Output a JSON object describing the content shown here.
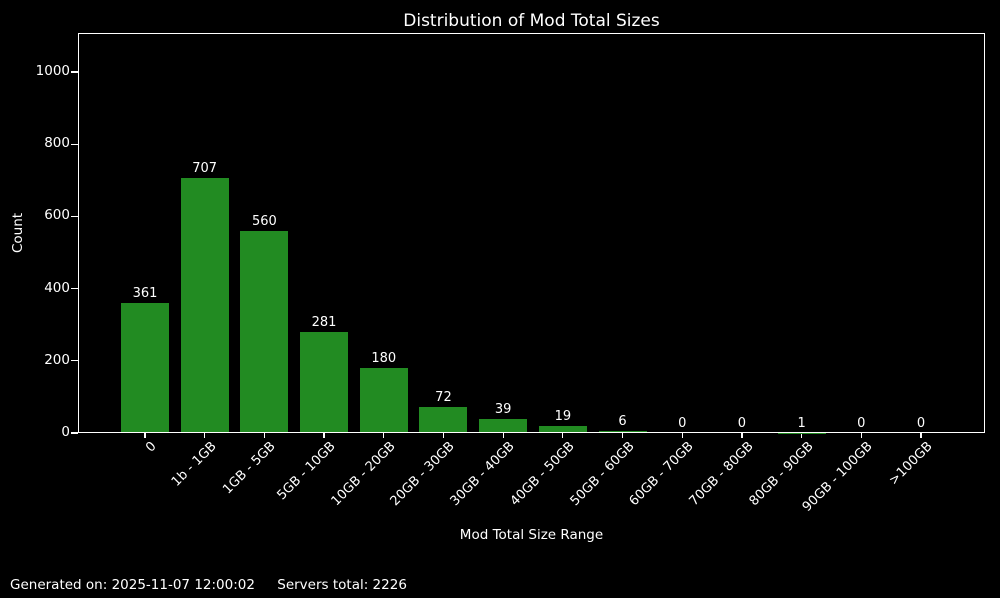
{
  "chart_data": {
    "type": "bar",
    "title": "Distribution of Mod Total Sizes",
    "xlabel": "Mod Total Size Range",
    "ylabel": "Count",
    "categories": [
      "0",
      "1b - 1GB",
      "1GB - 5GB",
      "5GB - 10GB",
      "10GB - 20GB",
      "20GB - 30GB",
      "30GB - 40GB",
      "40GB - 50GB",
      "50GB - 60GB",
      "60GB - 70GB",
      "70GB - 80GB",
      "80GB - 90GB",
      "90GB - 100GB",
      ">100GB"
    ],
    "values": [
      361,
      707,
      560,
      281,
      180,
      72,
      39,
      19,
      6,
      0,
      0,
      1,
      0,
      0
    ],
    "yticks": [
      0,
      200,
      400,
      600,
      800,
      1000
    ],
    "ylim": [
      0,
      1108
    ],
    "x_tick_rotation": 45,
    "grid": false,
    "bar_labels": true,
    "legend": "none",
    "bar_color": "#228b22",
    "background_color": "#000000",
    "text_color": "#ffffff"
  },
  "footer": {
    "generated_on": "Generated on: 2025-11-07 12:00:02",
    "servers_total": "Servers total: 2226"
  }
}
